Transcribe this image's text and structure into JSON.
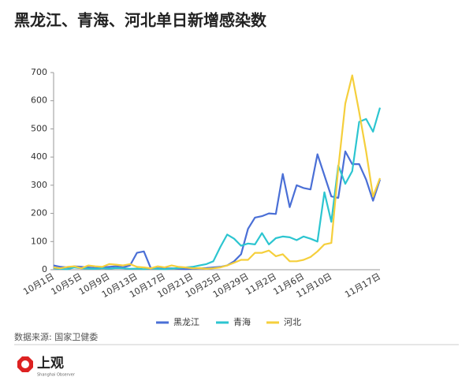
{
  "chart_data": {
    "type": "line",
    "title": "黑龙江、青海、河北单日新增感染数",
    "categories": [
      "10月1日",
      null,
      null,
      null,
      "10月5日",
      null,
      null,
      null,
      "10月9日",
      null,
      null,
      null,
      "10月13日",
      null,
      null,
      null,
      "10月17日",
      null,
      null,
      null,
      "10月21日",
      null,
      null,
      null,
      "10月25日",
      null,
      null,
      null,
      "10月29日",
      null,
      null,
      null,
      "11月2日",
      null,
      null,
      null,
      "11月6日",
      null,
      null,
      null,
      "11月10日",
      null,
      null,
      null,
      null,
      null,
      null,
      "11月17日"
    ],
    "series": [
      {
        "name": "黑龙江",
        "color": "#4a6fd6",
        "values": [
          15,
          10,
          8,
          12,
          10,
          8,
          6,
          8,
          10,
          12,
          8,
          15,
          60,
          65,
          5,
          5,
          4,
          5,
          3,
          2,
          4,
          5,
          6,
          8,
          10,
          15,
          30,
          55,
          145,
          185,
          190,
          200,
          198,
          340,
          222,
          300,
          290,
          285,
          410,
          335,
          260,
          255,
          420,
          375,
          375,
          320,
          245,
          320
        ]
      },
      {
        "name": "青海",
        "color": "#2cc5d0",
        "values": [
          5,
          3,
          2,
          8,
          5,
          4,
          3,
          5,
          4,
          6,
          5,
          3,
          4,
          2,
          5,
          3,
          2,
          4,
          6,
          8,
          10,
          15,
          20,
          30,
          80,
          125,
          110,
          85,
          93,
          90,
          130,
          90,
          112,
          118,
          115,
          105,
          118,
          110,
          100,
          275,
          170,
          370,
          305,
          350,
          525,
          535,
          490,
          575
        ]
      },
      {
        "name": "河北",
        "color": "#f5cf3c",
        "values": [
          8,
          5,
          10,
          12,
          5,
          15,
          12,
          10,
          20,
          18,
          15,
          20,
          10,
          8,
          5,
          12,
          8,
          15,
          10,
          8,
          5,
          6,
          3,
          5,
          8,
          15,
          25,
          35,
          35,
          60,
          60,
          68,
          48,
          55,
          30,
          30,
          35,
          45,
          65,
          90,
          95,
          360,
          590,
          690,
          560,
          420,
          260,
          325
        ]
      }
    ],
    "ylim": [
      0,
      700
    ],
    "yticks": [
      0,
      100,
      200,
      300,
      400,
      500,
      600,
      700
    ],
    "grid": false,
    "legend": "bottom",
    "source": "数据来源: 国家卫健委"
  },
  "brand": {
    "name": "上观",
    "subtitle": "Shanghai Observer"
  }
}
